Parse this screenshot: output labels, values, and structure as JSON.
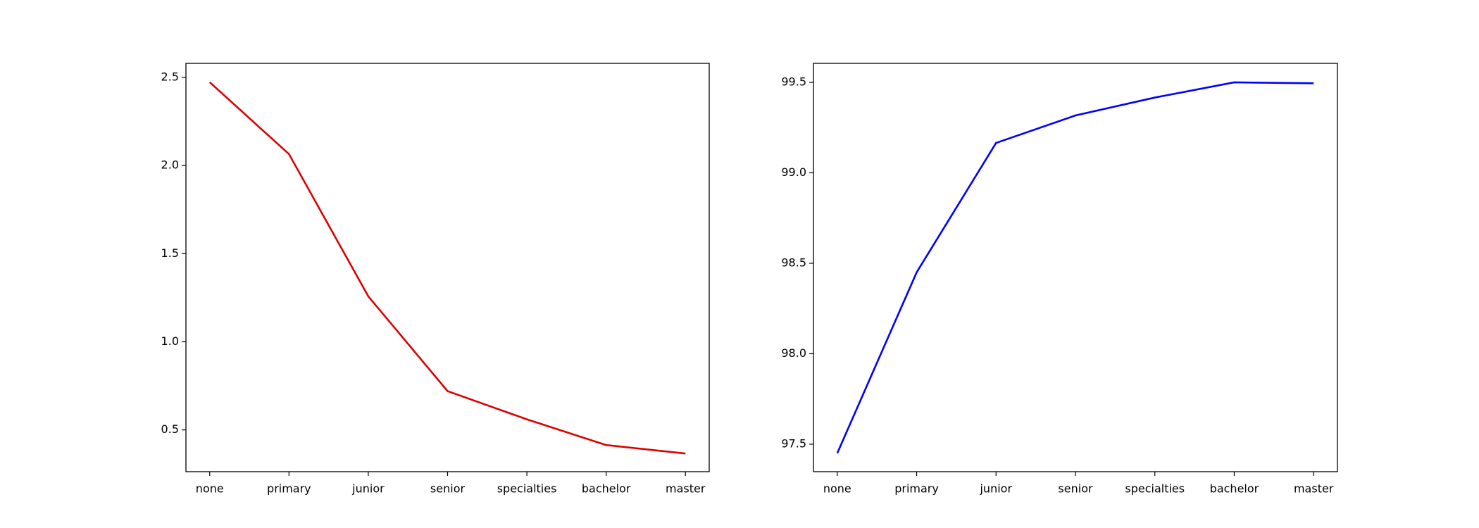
{
  "chart_data": [
    {
      "type": "line",
      "categories": [
        "none",
        "primary",
        "junior",
        "senior",
        "specialties",
        "bachelor",
        "master"
      ],
      "values": [
        2.473,
        2.065,
        1.258,
        0.72,
        0.56,
        0.414,
        0.366
      ],
      "color": "#dd0000",
      "ylim": [
        0.263,
        2.58
      ],
      "yticks": [
        0.5,
        1.0,
        1.5,
        2.0,
        2.5
      ]
    },
    {
      "type": "line",
      "categories": [
        "none",
        "primary",
        "junior",
        "senior",
        "specialties",
        "bachelor",
        "master"
      ],
      "values": [
        97.45,
        98.45,
        99.165,
        99.317,
        99.416,
        99.5,
        99.495
      ],
      "color": "#0000ff",
      "ylim": [
        97.348,
        99.605
      ],
      "yticks": [
        97.5,
        98.0,
        98.5,
        99.0,
        99.5
      ]
    }
  ]
}
